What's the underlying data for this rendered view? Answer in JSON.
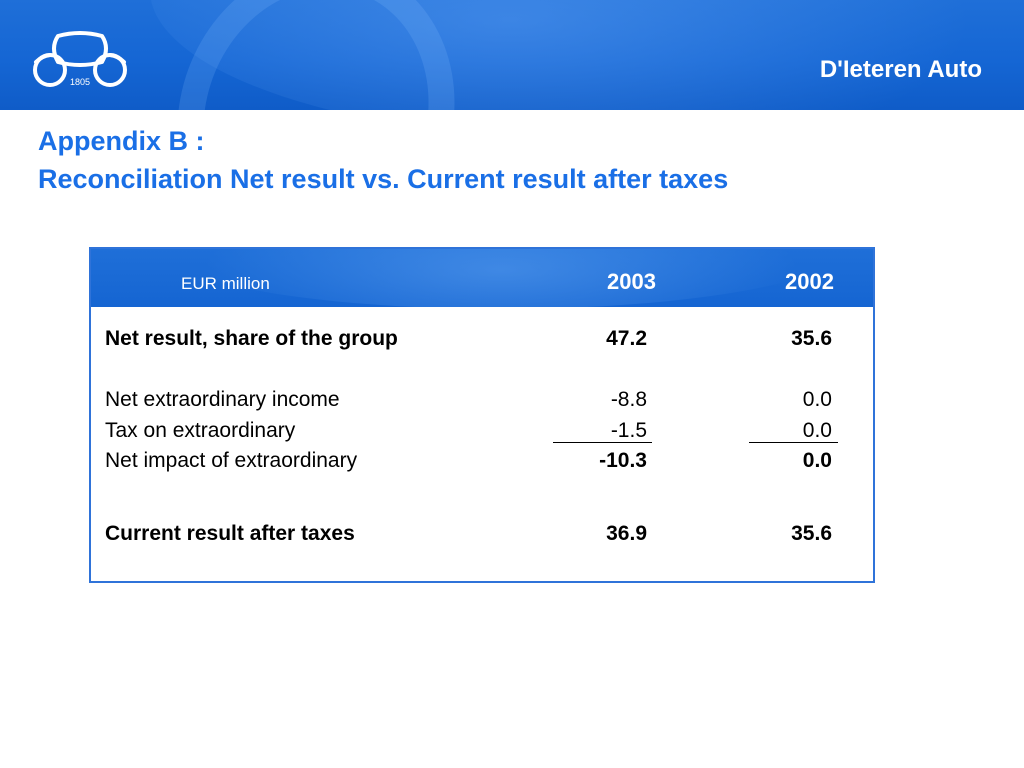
{
  "header": {
    "logo_year": "1805",
    "brand": "D'Ieteren Auto"
  },
  "title": {
    "line1": "Appendix B :",
    "line2": "Reconciliation Net result vs. Current result after taxes"
  },
  "table": {
    "unit_label": "EUR million",
    "columns": [
      "2003",
      "2002"
    ],
    "rows": [
      {
        "label": "Net result, share of the group",
        "v2003": "47.2",
        "v2002": "35.6",
        "bold": true
      },
      {
        "label": "Net extraordinary income",
        "v2003": "-8.8",
        "v2002": "0.0",
        "bold": false
      },
      {
        "label": "Tax on extraordinary",
        "v2003": "-1.5",
        "v2002": "0.0",
        "bold": false
      },
      {
        "label": "Net impact of extraordinary",
        "v2003": "-10.3",
        "v2002": "0.0",
        "bold": false,
        "values_bold": true
      },
      {
        "label": "Current result after taxes",
        "v2003": "36.9",
        "v2002": "35.6",
        "bold": true
      }
    ]
  },
  "colors": {
    "brand_blue": "#1566d4",
    "title_blue": "#1a6fe6"
  }
}
